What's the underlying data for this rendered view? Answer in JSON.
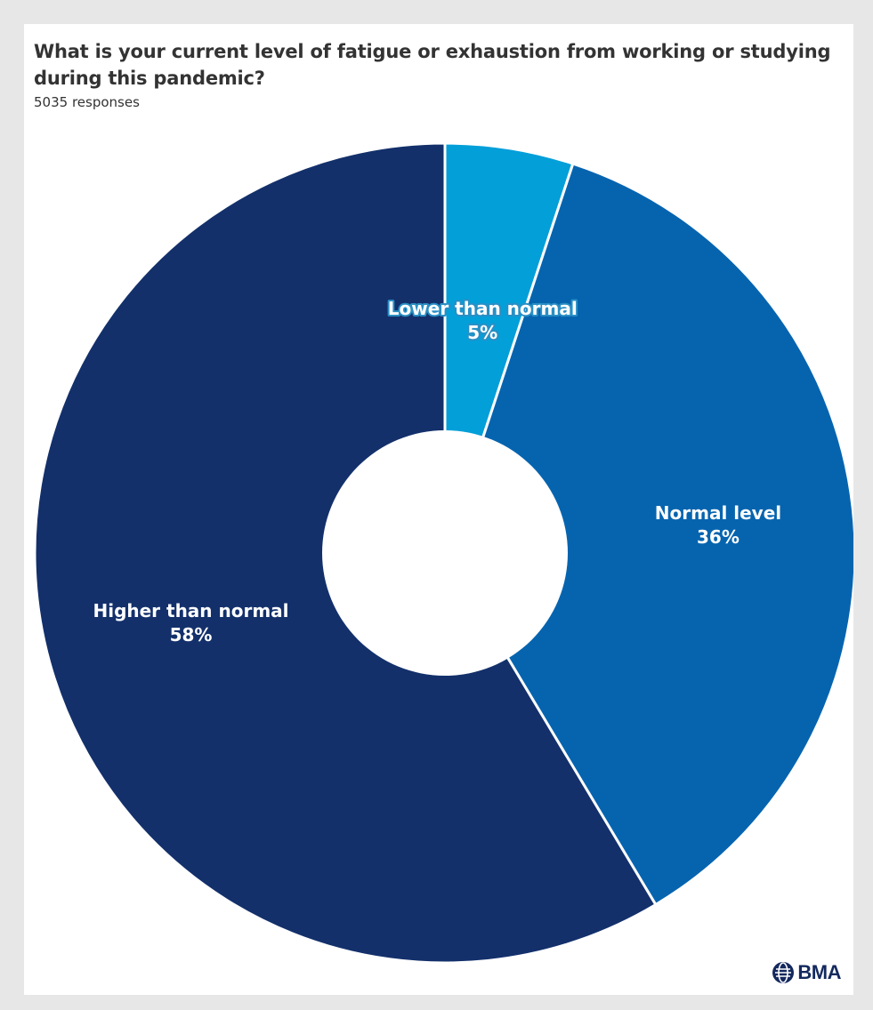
{
  "chart_data": {
    "type": "pie",
    "title": "What is your current level of fatigue or exhaustion from working or studying during this pandemic?",
    "subtitle": "5035 responses",
    "slices": [
      {
        "label": "Lower than normal",
        "value": 5,
        "value_label": "5%",
        "color": "#039fd9"
      },
      {
        "label": "Normal level",
        "value": 36,
        "value_label": "36%",
        "color": "#0664af"
      },
      {
        "label": "Higher than normal",
        "value": 58,
        "value_label": "58%",
        "color": "#13306b"
      }
    ],
    "donut": true
  },
  "logo": {
    "text": "BMA",
    "icon": "bma-globe-icon"
  }
}
